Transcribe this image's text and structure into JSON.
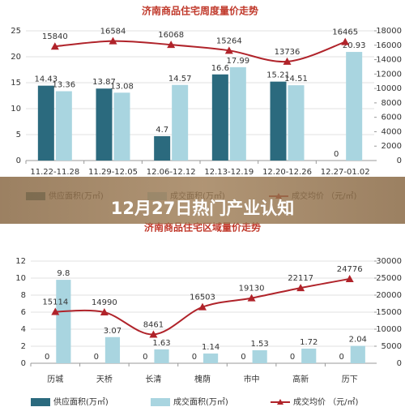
{
  "chart_data": [
    {
      "type": "bar",
      "title": "济南商品住宅周度量价走势",
      "categories": [
        "11.22-11.28",
        "11.29-12.05",
        "12.06-12.12",
        "12.13-12.19",
        "12.20-12.26",
        "12.27-01.02"
      ],
      "series": [
        {
          "name": "供应面积(万㎡)",
          "color": "#2b6a7e",
          "values": [
            14.43,
            13.87,
            4.7,
            16.6,
            15.21,
            0
          ]
        },
        {
          "name": "成交面积(万㎡)",
          "color": "#a9d5e0",
          "values": [
            13.36,
            13.08,
            14.57,
            17.99,
            14.51,
            20.93
          ]
        },
        {
          "name": "成交均价 （元/㎡)",
          "color": "#b0232a",
          "type": "line",
          "axis": "y2",
          "values": [
            15840,
            16584,
            16068,
            15264,
            13736,
            16465
          ]
        }
      ],
      "ylim": [
        0,
        25
      ],
      "yticks": [
        0,
        5,
        10,
        15,
        20,
        25
      ],
      "y2lim": [
        0,
        18000
      ],
      "y2ticks": [
        0,
        2000,
        4000,
        6000,
        8000,
        10000,
        12000,
        14000,
        16000,
        18000
      ],
      "grid": true
    },
    {
      "type": "bar",
      "title": "济南商品住宅区域量价走势",
      "categories": [
        "历城",
        "天桥",
        "长清",
        "槐荫",
        "市中",
        "高新",
        "历下"
      ],
      "series": [
        {
          "name": "供应面积(万㎡)",
          "color": "#2b6a7e",
          "values": [
            0,
            0,
            0,
            0,
            0,
            0,
            0
          ]
        },
        {
          "name": "成交面积(万㎡)",
          "color": "#a9d5e0",
          "values": [
            9.8,
            3.07,
            1.63,
            1.14,
            1.53,
            1.72,
            2.04
          ]
        },
        {
          "name": "成交均价 （元/㎡)",
          "color": "#b0232a",
          "type": "line",
          "axis": "y2",
          "values": [
            15114,
            14990,
            8461,
            16503,
            19130,
            22117,
            24776
          ]
        }
      ],
      "ylim": [
        0,
        12
      ],
      "yticks": [
        0,
        2,
        4,
        6,
        8,
        10,
        12
      ],
      "y2lim": [
        0,
        30000
      ],
      "y2ticks": [
        0,
        5000,
        10000,
        15000,
        20000,
        25000,
        30000
      ],
      "grid": true
    }
  ],
  "banner": {
    "text": "12月27日热门产业认知"
  }
}
